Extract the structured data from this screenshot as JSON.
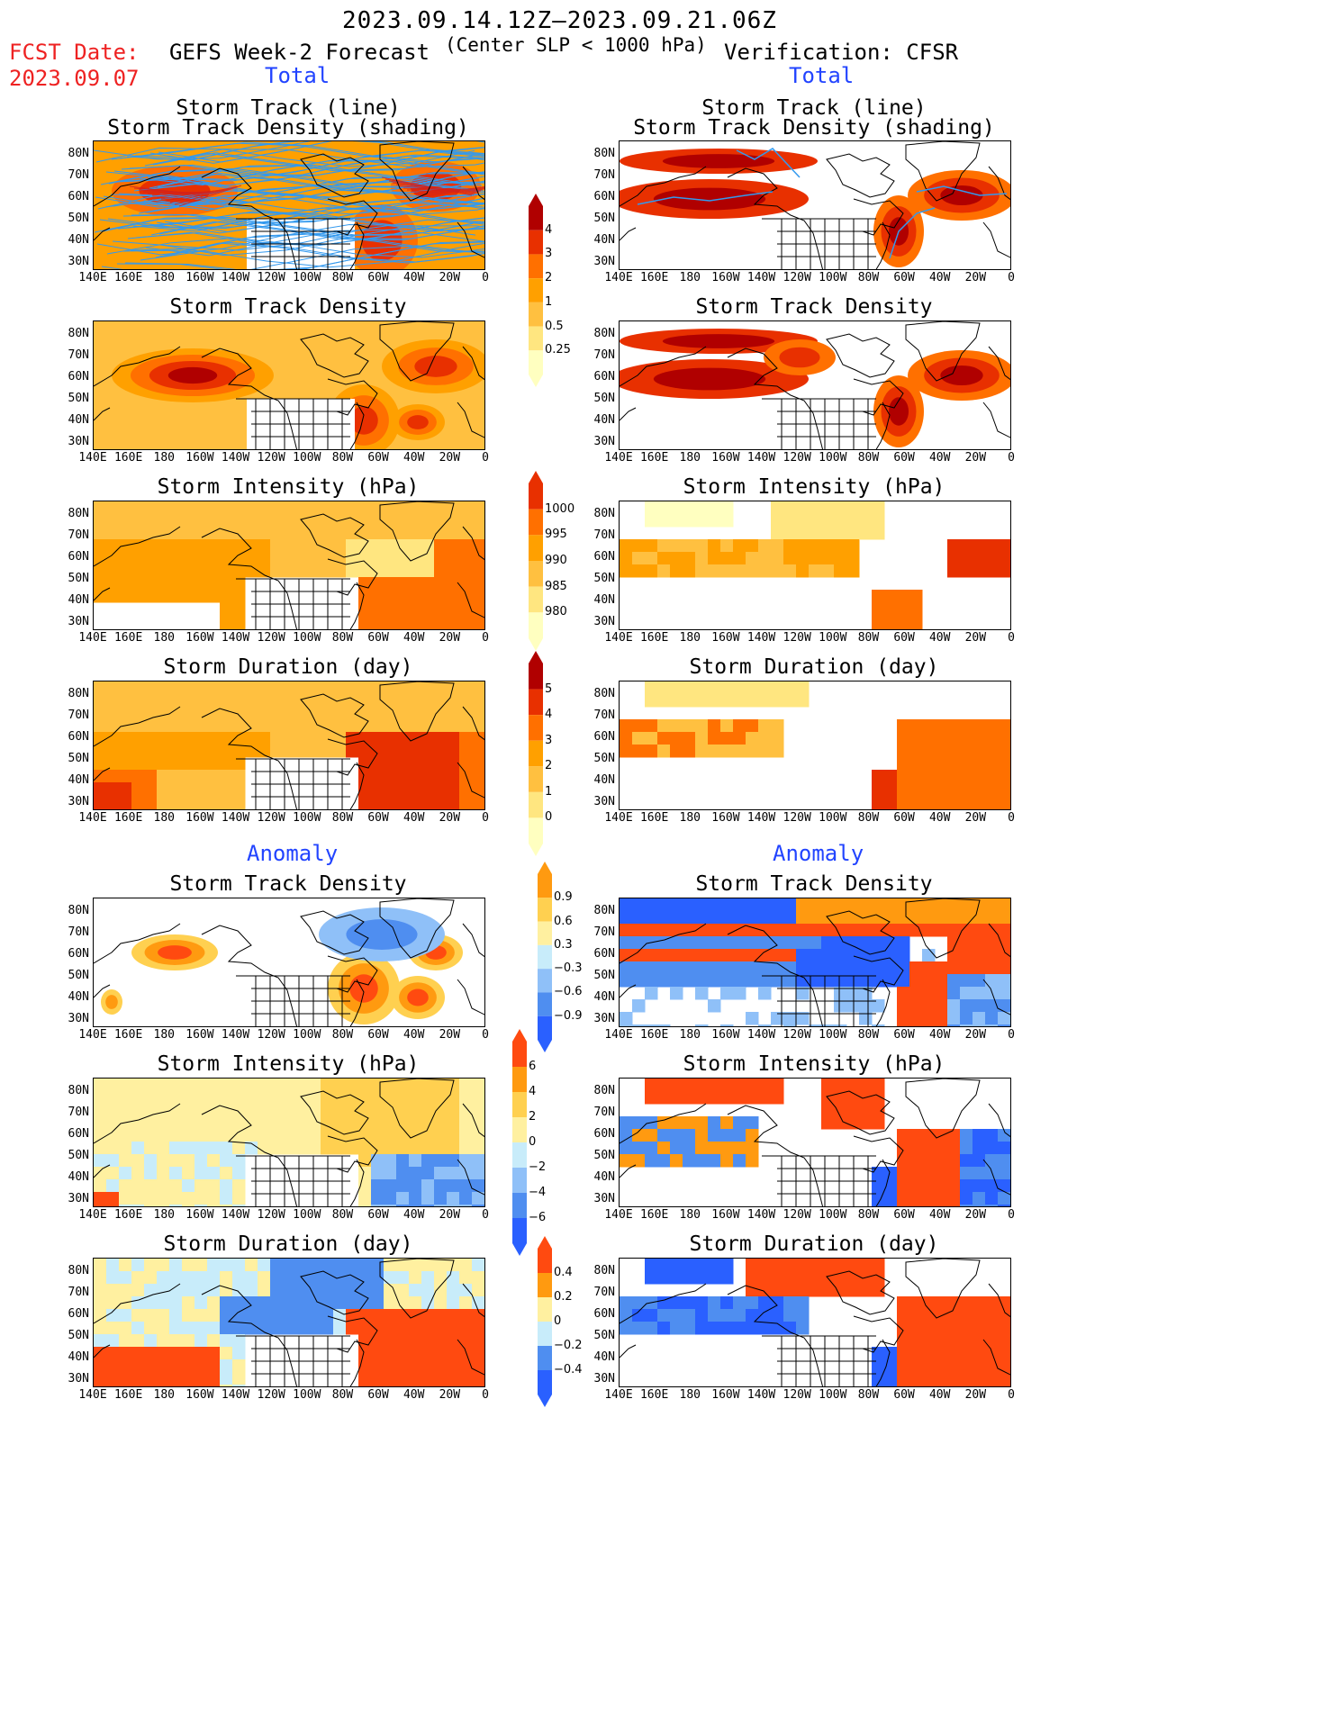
{
  "header": {
    "date_range": "2023.09.14.12Z—2023.09.21.06Z",
    "slp_note": "(Center SLP < 1000 hPa)",
    "fcst_label": "FCST Date:",
    "fcst_date": "2023.09.07",
    "left_title": "GEFS Week-2 Forecast",
    "right_title": "Verification: CFSR",
    "total_label": "Total",
    "anomaly_label": "Anomaly"
  },
  "panels": {
    "track_line": "Storm Track (line)",
    "track_density_shading": "Storm Track Density (shading)",
    "track_density": "Storm Track Density",
    "intensity": "Storm Intensity (hPa)",
    "duration": "Storm Duration (day)"
  },
  "axes": {
    "lat_labels": [
      "80N",
      "70N",
      "60N",
      "50N",
      "40N",
      "30N"
    ],
    "lon_labels": [
      "140E",
      "160E",
      "180",
      "160W",
      "140W",
      "120W",
      "100W",
      "80W",
      "60W",
      "40W",
      "20W",
      "0"
    ]
  },
  "colorbars": {
    "density": [
      "4",
      "3",
      "2",
      "1",
      "0.5",
      "0.25"
    ],
    "intensity": [
      "1000",
      "995",
      "990",
      "985",
      "980"
    ],
    "duration": [
      "5",
      "4",
      "3",
      "2",
      "1",
      "0"
    ],
    "density_anom": [
      "0.9",
      "0.6",
      "0.3",
      "−0.3",
      "−0.6",
      "−0.9"
    ],
    "intensity_anom": [
      "6",
      "4",
      "2",
      "0",
      "−2",
      "−4",
      "−6"
    ],
    "duration_anom": [
      "0.4",
      "0.2",
      "0",
      "−0.2",
      "−0.4"
    ]
  },
  "colors": {
    "total_scale": [
      "#ffffc0",
      "#ffe680",
      "#ffc040",
      "#ffa000",
      "#ff7000",
      "#e83000",
      "#b00000"
    ],
    "anom_scale": [
      "#2a60ff",
      "#4f8ef0",
      "#8fc0f8",
      "#c8ecfa",
      "#ffffff",
      "#fff0a0",
      "#ffd050",
      "#ff9a10",
      "#ff4a10"
    ],
    "track_line": "#3399ee",
    "track_red": "#d02020"
  }
}
